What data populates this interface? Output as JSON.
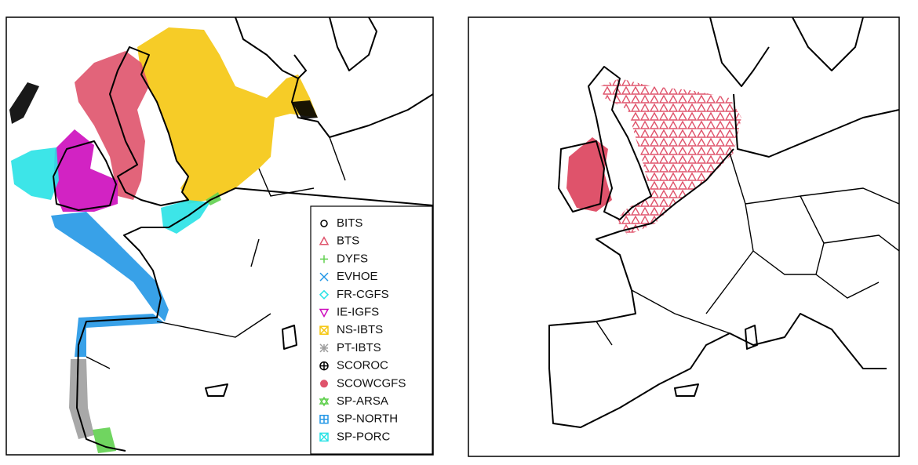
{
  "panels": [
    {
      "legend": {
        "entries": [
          {
            "label": "BITS",
            "color": "#000000",
            "marker": "circle"
          },
          {
            "label": "BTS",
            "color": "#df536b",
            "marker": "triangle"
          },
          {
            "label": "DYFS",
            "color": "#61d04f",
            "marker": "plus"
          },
          {
            "label": "EVHOE",
            "color": "#2297e6",
            "marker": "cross"
          },
          {
            "label": "FR-CGFS",
            "color": "#28e2e5",
            "marker": "diamond"
          },
          {
            "label": "IE-IGFS",
            "color": "#cd0bbc",
            "marker": "triangle-down"
          },
          {
            "label": "NS-IBTS",
            "color": "#f5c710",
            "marker": "square-cross"
          },
          {
            "label": "PT-IBTS",
            "color": "#9e9e9e",
            "marker": "asterisk"
          },
          {
            "label": "SCOROC",
            "color": "#000000",
            "marker": "circle-plus"
          },
          {
            "label": "SCOWCGFS",
            "color": "#df536b",
            "marker": "circle-filled"
          },
          {
            "label": "SP-ARSA",
            "color": "#61d04f",
            "marker": "star"
          },
          {
            "label": "SP-NORTH",
            "color": "#2297e6",
            "marker": "square-plus"
          },
          {
            "label": "SP-PORC",
            "color": "#28e2e5",
            "marker": "square-cross"
          }
        ]
      }
    }
  ]
}
